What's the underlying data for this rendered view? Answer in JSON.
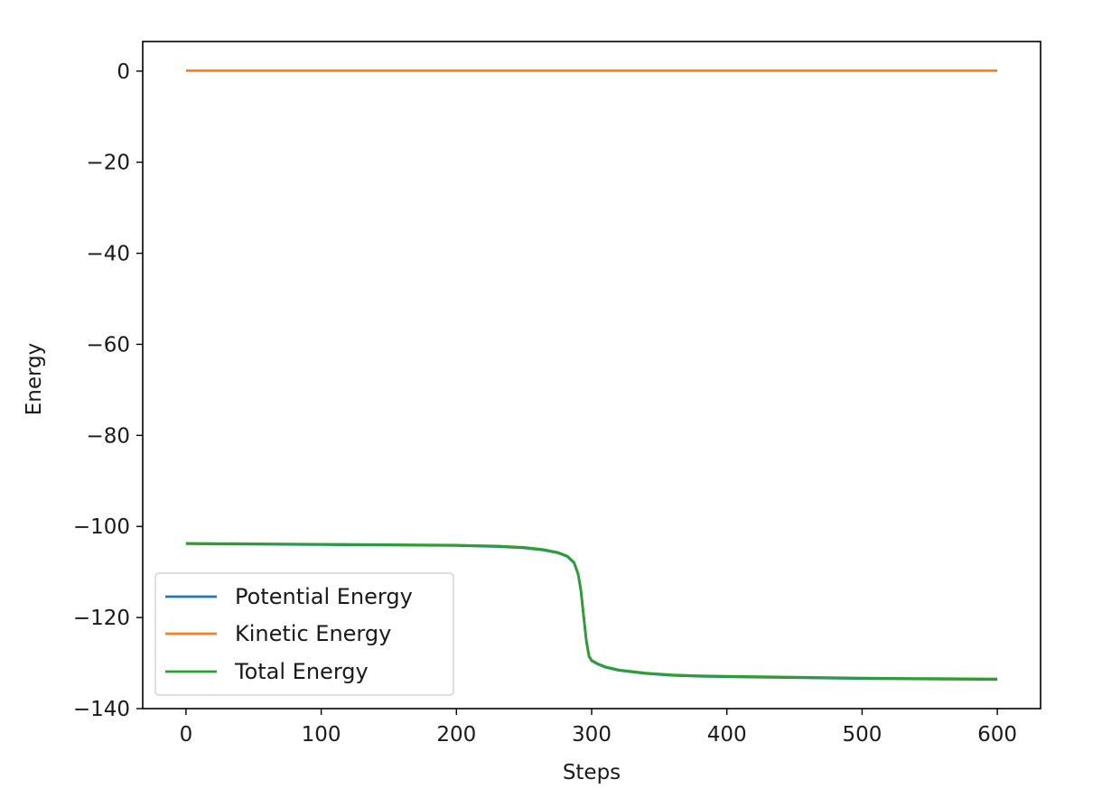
{
  "chart_data": {
    "type": "line",
    "title": "",
    "xlabel": "Steps",
    "ylabel": "Energy",
    "xlim": [
      -32,
      632
    ],
    "ylim": [
      -140,
      6.5
    ],
    "xticks": [
      0,
      100,
      200,
      300,
      400,
      500,
      600
    ],
    "yticks": [
      0,
      -20,
      -40,
      -60,
      -80,
      -100,
      -120,
      -140
    ],
    "xtick_labels": [
      "0",
      "100",
      "200",
      "300",
      "400",
      "500",
      "600"
    ],
    "ytick_labels": [
      "0",
      "−20",
      "−40",
      "−60",
      "−80",
      "−100",
      "−120",
      "−140"
    ],
    "grid": false,
    "legend_position": "lower-left",
    "series": [
      {
        "name": "Potential Energy",
        "color": "#1f77b4",
        "x": [
          0,
          50,
          100,
          150,
          200,
          230,
          250,
          265,
          275,
          282,
          287,
          290,
          292,
          294,
          296,
          298,
          300,
          305,
          310,
          320,
          340,
          360,
          380,
          400,
          450,
          500,
          550,
          600
        ],
        "y": [
          -103.8,
          -103.9,
          -104.0,
          -104.1,
          -104.2,
          -104.4,
          -104.7,
          -105.2,
          -105.8,
          -106.6,
          -108.0,
          -110.5,
          -114.0,
          -119.5,
          -125.0,
          -128.5,
          -129.5,
          -130.3,
          -130.9,
          -131.6,
          -132.3,
          -132.7,
          -132.9,
          -133.0,
          -133.2,
          -133.4,
          -133.5,
          -133.6
        ]
      },
      {
        "name": "Kinetic Energy",
        "color": "#ff7f0e",
        "x": [
          0,
          100,
          200,
          300,
          400,
          500,
          600
        ],
        "y": [
          0.1,
          0.1,
          0.1,
          0.1,
          0.1,
          0.1,
          0.1
        ]
      },
      {
        "name": "Total Energy",
        "color": "#2ca02c",
        "x": [
          0,
          50,
          100,
          150,
          200,
          230,
          250,
          265,
          275,
          282,
          287,
          290,
          292,
          294,
          296,
          298,
          300,
          305,
          310,
          320,
          340,
          360,
          380,
          400,
          450,
          500,
          550,
          600
        ],
        "y": [
          -103.7,
          -103.8,
          -103.9,
          -104.0,
          -104.1,
          -104.3,
          -104.6,
          -105.1,
          -105.7,
          -106.5,
          -107.9,
          -110.4,
          -113.9,
          -119.4,
          -124.9,
          -128.4,
          -129.4,
          -130.2,
          -130.8,
          -131.5,
          -132.2,
          -132.6,
          -132.8,
          -132.9,
          -133.1,
          -133.3,
          -133.4,
          -133.5
        ]
      }
    ]
  }
}
